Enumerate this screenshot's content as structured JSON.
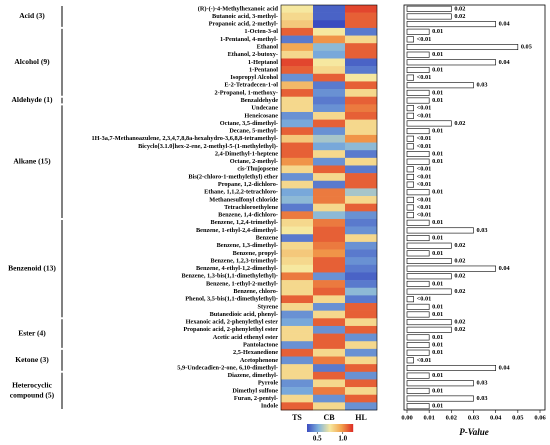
{
  "chart_data": [
    {
      "type": "heatmap",
      "columns": [
        "TS",
        "CB",
        "HL"
      ],
      "clim": [
        0.3,
        1.2
      ],
      "colormap": [
        "#3b4cc0",
        "#80b3dd",
        "#f6e8a0",
        "#f2a14c",
        "#dd2c25"
      ],
      "colorbar_ticks": [
        0.5,
        {
          "value": 1,
          "label": "1.0"
        }
      ],
      "groups": [
        {
          "lines": [
            "Acid (3)"
          ],
          "rows": [
            "(R)-(-)-4-Methylhexanoic acid",
            "Butanoic acid, 3-methyl-",
            "Propanoic acid, 2-methyl-"
          ],
          "values": [
            [
              0.75,
              0.35,
              1.15
            ],
            [
              0.8,
              0.35,
              1.1
            ],
            [
              0.85,
              0.3,
              1.1
            ]
          ]
        },
        {
          "lines": [
            "Alcohol (9)"
          ],
          "rows": [
            "1-Octen-3-ol",
            "1-Pentanol, 4-methyl-",
            "Ethanol",
            "Ethanol, 2-butoxy-",
            "1-Heptanol",
            "1-Pentanol",
            "Isopropyl Alcohol",
            "E-2-Tetradecen-1-ol",
            "2-Propanol, 1-methoxy-"
          ],
          "values": [
            [
              1.1,
              0.75,
              0.4
            ],
            [
              0.4,
              1.0,
              0.8
            ],
            [
              0.95,
              0.55,
              1.1
            ],
            [
              0.8,
              0.5,
              1.1
            ],
            [
              1.15,
              0.75,
              0.35
            ],
            [
              1.1,
              0.8,
              0.4
            ],
            [
              0.45,
              1.1,
              0.75
            ],
            [
              0.9,
              0.4,
              1.1
            ],
            [
              1.1,
              0.45,
              0.8
            ]
          ]
        },
        {
          "lines": [
            "Aldehyde (1)"
          ],
          "rows": [
            "Benzaldehyde"
          ],
          "values": [
            [
              0.8,
              0.4,
              1.1
            ]
          ]
        },
        {
          "lines": [
            "Alkane (15)"
          ],
          "rows": [
            "Undecane",
            "Heneicosane",
            "Octane, 3,5-dimethyl-",
            "Decane, 5-methyl-",
            "1H-3a,7-Methanoazulene, 2,3,4,7,8,8a-hexahydro-3,6,8,8-tetramethyl-",
            "Bicyclo[3.1.0]hex-2-ene, 2-methyl-5-(1-methylethyl)-",
            "2,4-Dimethyl-1-heptene",
            "Octane, 2-methyl-",
            "cis-Thujopsene",
            "Bis(2-chloro-1-methylethyl) ether",
            "Propane, 1,2-dichloro-",
            "Ethane, 1,1,2,2-tetrachloro-",
            "Methanesulfonyl chloride",
            "Tetrachloroethylene",
            "Benzene, 1,4-dichloro-"
          ],
          "values": [
            [
              0.8,
              0.45,
              1.05
            ],
            [
              0.45,
              0.8,
              1.1
            ],
            [
              0.5,
              1.1,
              0.8
            ],
            [
              1.1,
              0.45,
              0.8
            ],
            [
              0.85,
              0.6,
              1.0
            ],
            [
              1.1,
              0.5,
              0.55
            ],
            [
              1.1,
              0.8,
              0.4
            ],
            [
              1.0,
              0.45,
              0.8
            ],
            [
              0.8,
              1.1,
              0.4
            ],
            [
              0.45,
              0.8,
              1.1
            ],
            [
              0.8,
              0.4,
              1.1
            ],
            [
              0.5,
              1.05,
              0.6
            ],
            [
              0.55,
              1.05,
              0.8
            ],
            [
              0.4,
              0.8,
              1.1
            ],
            [
              1.05,
              0.55,
              0.45
            ]
          ]
        },
        {
          "lines": [
            "Benzenoid (13)"
          ],
          "rows": [
            "Benzene, 1,2,4-trimethyl-",
            "Benzene, 1-ethyl-2,4-dimethyl-",
            "Benzene",
            "Benzene, 1,3-dimethyl-",
            "Benzene, propyl-",
            "Benzene, 1,2,3-trimethyl-",
            "Benzene, 4-ethyl-1,2-dimethyl-",
            "Benzene, 1,3-bis(1,1-dimethylethyl)-",
            "Benzene, 1-ethyl-2-methyl-",
            "Benzene, chloro-",
            "Phenol, 3,5-bis(1,1-dimethylethyl)-",
            "Styrene",
            "Butanedioic acid, phenyl-"
          ],
          "values": [
            [
              0.8,
              1.05,
              0.4
            ],
            [
              0.75,
              1.1,
              0.45
            ],
            [
              0.4,
              1.1,
              0.8
            ],
            [
              0.8,
              1.05,
              0.45
            ],
            [
              0.85,
              1.0,
              0.4
            ],
            [
              0.8,
              1.1,
              0.45
            ],
            [
              0.75,
              1.1,
              0.4
            ],
            [
              1.05,
              0.45,
              0.35
            ],
            [
              0.8,
              1.05,
              0.4
            ],
            [
              0.8,
              1.1,
              0.55
            ],
            [
              1.1,
              0.8,
              0.4
            ],
            [
              0.8,
              0.45,
              1.1
            ],
            [
              0.45,
              0.8,
              1.1
            ]
          ]
        },
        {
          "lines": [
            "Ester (4)"
          ],
          "rows": [
            "Hexanoic acid, 2-phenylethyl ester",
            "Propanoic acid, 2-phenylethyl ester",
            "Acetic acid ethenyl ester",
            "Pantolactone"
          ],
          "values": [
            [
              0.5,
              1.1,
              0.8
            ],
            [
              0.8,
              0.45,
              1.1
            ],
            [
              0.8,
              1.1,
              0.45
            ],
            [
              0.45,
              1.1,
              0.8
            ]
          ]
        },
        {
          "lines": [
            "Ketone (3)"
          ],
          "rows": [
            "2,5-Hexanedione",
            "Acetophenone",
            "5,9-Undecadien-2-one, 6,10-dimethyl-"
          ],
          "values": [
            [
              1.1,
              0.8,
              0.45
            ],
            [
              0.45,
              1.05,
              0.8
            ],
            [
              0.8,
              0.4,
              1.1
            ]
          ]
        },
        {
          "lines": [
            "Heterocyclic",
            "compound (5)"
          ],
          "rows": [
            "Diazene, dimethyl-",
            "Pyrrole",
            "Dimethyl sulfone",
            "Furan, 2-pentyl-",
            "Indole"
          ],
          "values": [
            [
              0.8,
              1.1,
              0.45
            ],
            [
              0.45,
              0.8,
              1.1
            ],
            [
              0.5,
              1.05,
              0.8
            ],
            [
              0.8,
              0.45,
              1.1
            ],
            [
              1.1,
              0.8,
              0.45
            ]
          ]
        }
      ]
    },
    {
      "type": "bar",
      "xlabel": "P-Value",
      "color": "#ffffff",
      "xlim": [
        0,
        0.06
      ],
      "xticks": [
        {
          "value": 0,
          "label": "0.00"
        },
        0.01,
        0.02,
        0.03,
        0.04,
        0.05,
        0.06
      ],
      "values": [
        0.02,
        0.02,
        0.04,
        0.01,
        0.003,
        0.05,
        0.01,
        0.04,
        0.01,
        0.003,
        0.03,
        0.01,
        0.01,
        0.003,
        0.003,
        0.02,
        0.01,
        0.003,
        0.003,
        0.01,
        0.01,
        0.003,
        0.003,
        0.003,
        0.01,
        0.003,
        0.003,
        0.003,
        0.01,
        0.03,
        0.01,
        0.02,
        0.01,
        0.02,
        0.04,
        0.02,
        0.01,
        0.02,
        0.003,
        0.01,
        0.01,
        0.02,
        0.02,
        0.01,
        0.01,
        0.01,
        0.003,
        0.04,
        0.01,
        0.03,
        0.01,
        0.03,
        0.01
      ],
      "value_labels": [
        "0.02",
        "0.02",
        "0.04",
        "0.01",
        "<0.01",
        "0.05",
        "0.01",
        "0.04",
        "0.01",
        "<0.01",
        "0.03",
        "0.01",
        "0.01",
        "<0.01",
        "<0.01",
        "0.02",
        "0.01",
        "<0.01",
        "<0.01",
        "0.01",
        "0.01",
        "<0.01",
        "<0.01",
        "<0.01",
        "0.01",
        "<0.01",
        "<0.01",
        "<0.01",
        "0.01",
        "0.03",
        "0.01",
        "0.02",
        "0.01",
        "0.02",
        "0.04",
        "0.02",
        "0.01",
        "0.02",
        "<0.01",
        "0.01",
        "0.01",
        "0.02",
        "0.02",
        "0.01",
        "0.01",
        "0.01",
        "<0.01",
        "0.04",
        "0.01",
        "0.03",
        "0.01",
        "0.03",
        "0.01"
      ]
    }
  ]
}
